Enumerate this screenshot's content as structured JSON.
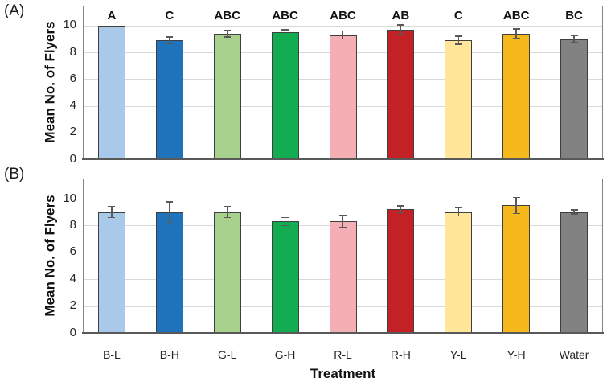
{
  "figure": {
    "panel_a_label": "(A)",
    "panel_b_label": "(B)",
    "y_axis_title": "Mean No. of Flyers",
    "x_axis_title": "Treatment"
  },
  "colors": {
    "bars": [
      "#A8C9E9",
      "#1F73BA",
      "#A9D18E",
      "#14AC50",
      "#F4AFB5",
      "#C42127",
      "#FFE699",
      "#F5B91E",
      "#828282"
    ],
    "bar_border": "#3F3F3F",
    "error_bar": "#595959",
    "gridline": "#D9D9D9",
    "frame": "#848484",
    "axis_line": "#595959"
  },
  "chart_data": [
    {
      "type": "bar",
      "panel": "A",
      "title": "",
      "categories": [
        "B-L",
        "B-H",
        "G-L",
        "G-H",
        "R-L",
        "R-H",
        "Y-L",
        "Y-H",
        "Water"
      ],
      "values": [
        10.0,
        8.9,
        9.4,
        9.5,
        9.3,
        9.7,
        8.9,
        9.4,
        9.0
      ],
      "errors": [
        0,
        0.25,
        0.25,
        0.2,
        0.3,
        0.35,
        0.3,
        0.35,
        0.25
      ],
      "sig_letters": [
        "A",
        "C",
        "ABC",
        "ABC",
        "ABC",
        "AB",
        "C",
        "ABC",
        "BC"
      ],
      "xlabel": "",
      "ylabel": "Mean No. of Flyers",
      "yticks": [
        0,
        2,
        4,
        6,
        8,
        10
      ],
      "ylim": [
        0,
        11.5
      ],
      "grid": true,
      "legend": "none"
    },
    {
      "type": "bar",
      "panel": "B",
      "title": "",
      "categories": [
        "B-L",
        "B-H",
        "G-L",
        "G-H",
        "R-L",
        "R-H",
        "Y-L",
        "Y-H",
        "Water"
      ],
      "values": [
        9.0,
        9.0,
        9.0,
        8.3,
        8.3,
        9.2,
        9.0,
        9.5,
        9.0
      ],
      "errors": [
        0.4,
        0.75,
        0.4,
        0.3,
        0.45,
        0.25,
        0.3,
        0.6,
        0.15
      ],
      "sig_letters": null,
      "xlabel": "Treatment",
      "ylabel": "Mean No. of Flyers",
      "yticks": [
        0,
        2,
        4,
        6,
        8,
        10
      ],
      "ylim": [
        0,
        11.5
      ],
      "grid": true,
      "legend": "none"
    }
  ]
}
